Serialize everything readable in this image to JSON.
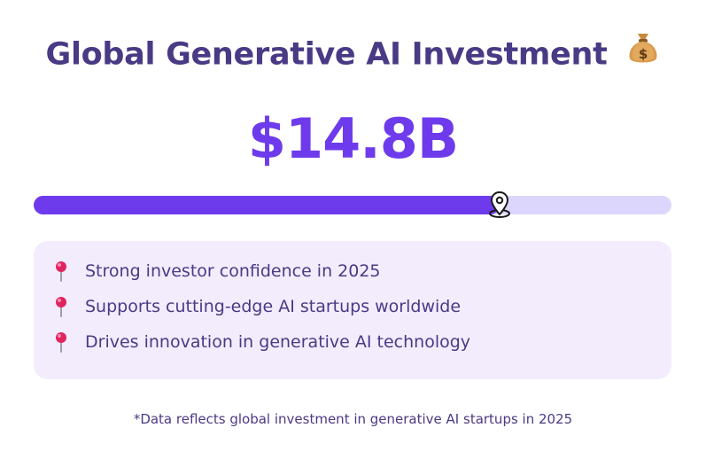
{
  "title": "Global Generative AI Investment",
  "title_icon": "money-bag-icon",
  "amount": "$14.8B",
  "progress": {
    "fraction": 0.73,
    "marker_icon": "location-pin-icon",
    "fill_color": "#6e3bec",
    "track_color": "#ddd6fc"
  },
  "highlights": [
    {
      "icon": "round-pushpin-icon",
      "text": "Strong investor confidence in 2025"
    },
    {
      "icon": "round-pushpin-icon",
      "text": "Supports cutting-edge AI startups worldwide"
    },
    {
      "icon": "round-pushpin-icon",
      "text": "Drives innovation in generative AI technology"
    }
  ],
  "footnote": "*Data reflects global investment in generative AI startups in 2025",
  "colors": {
    "title": "#4a3a85",
    "accent": "#6e3bec",
    "panel": "#f2ecfd"
  }
}
